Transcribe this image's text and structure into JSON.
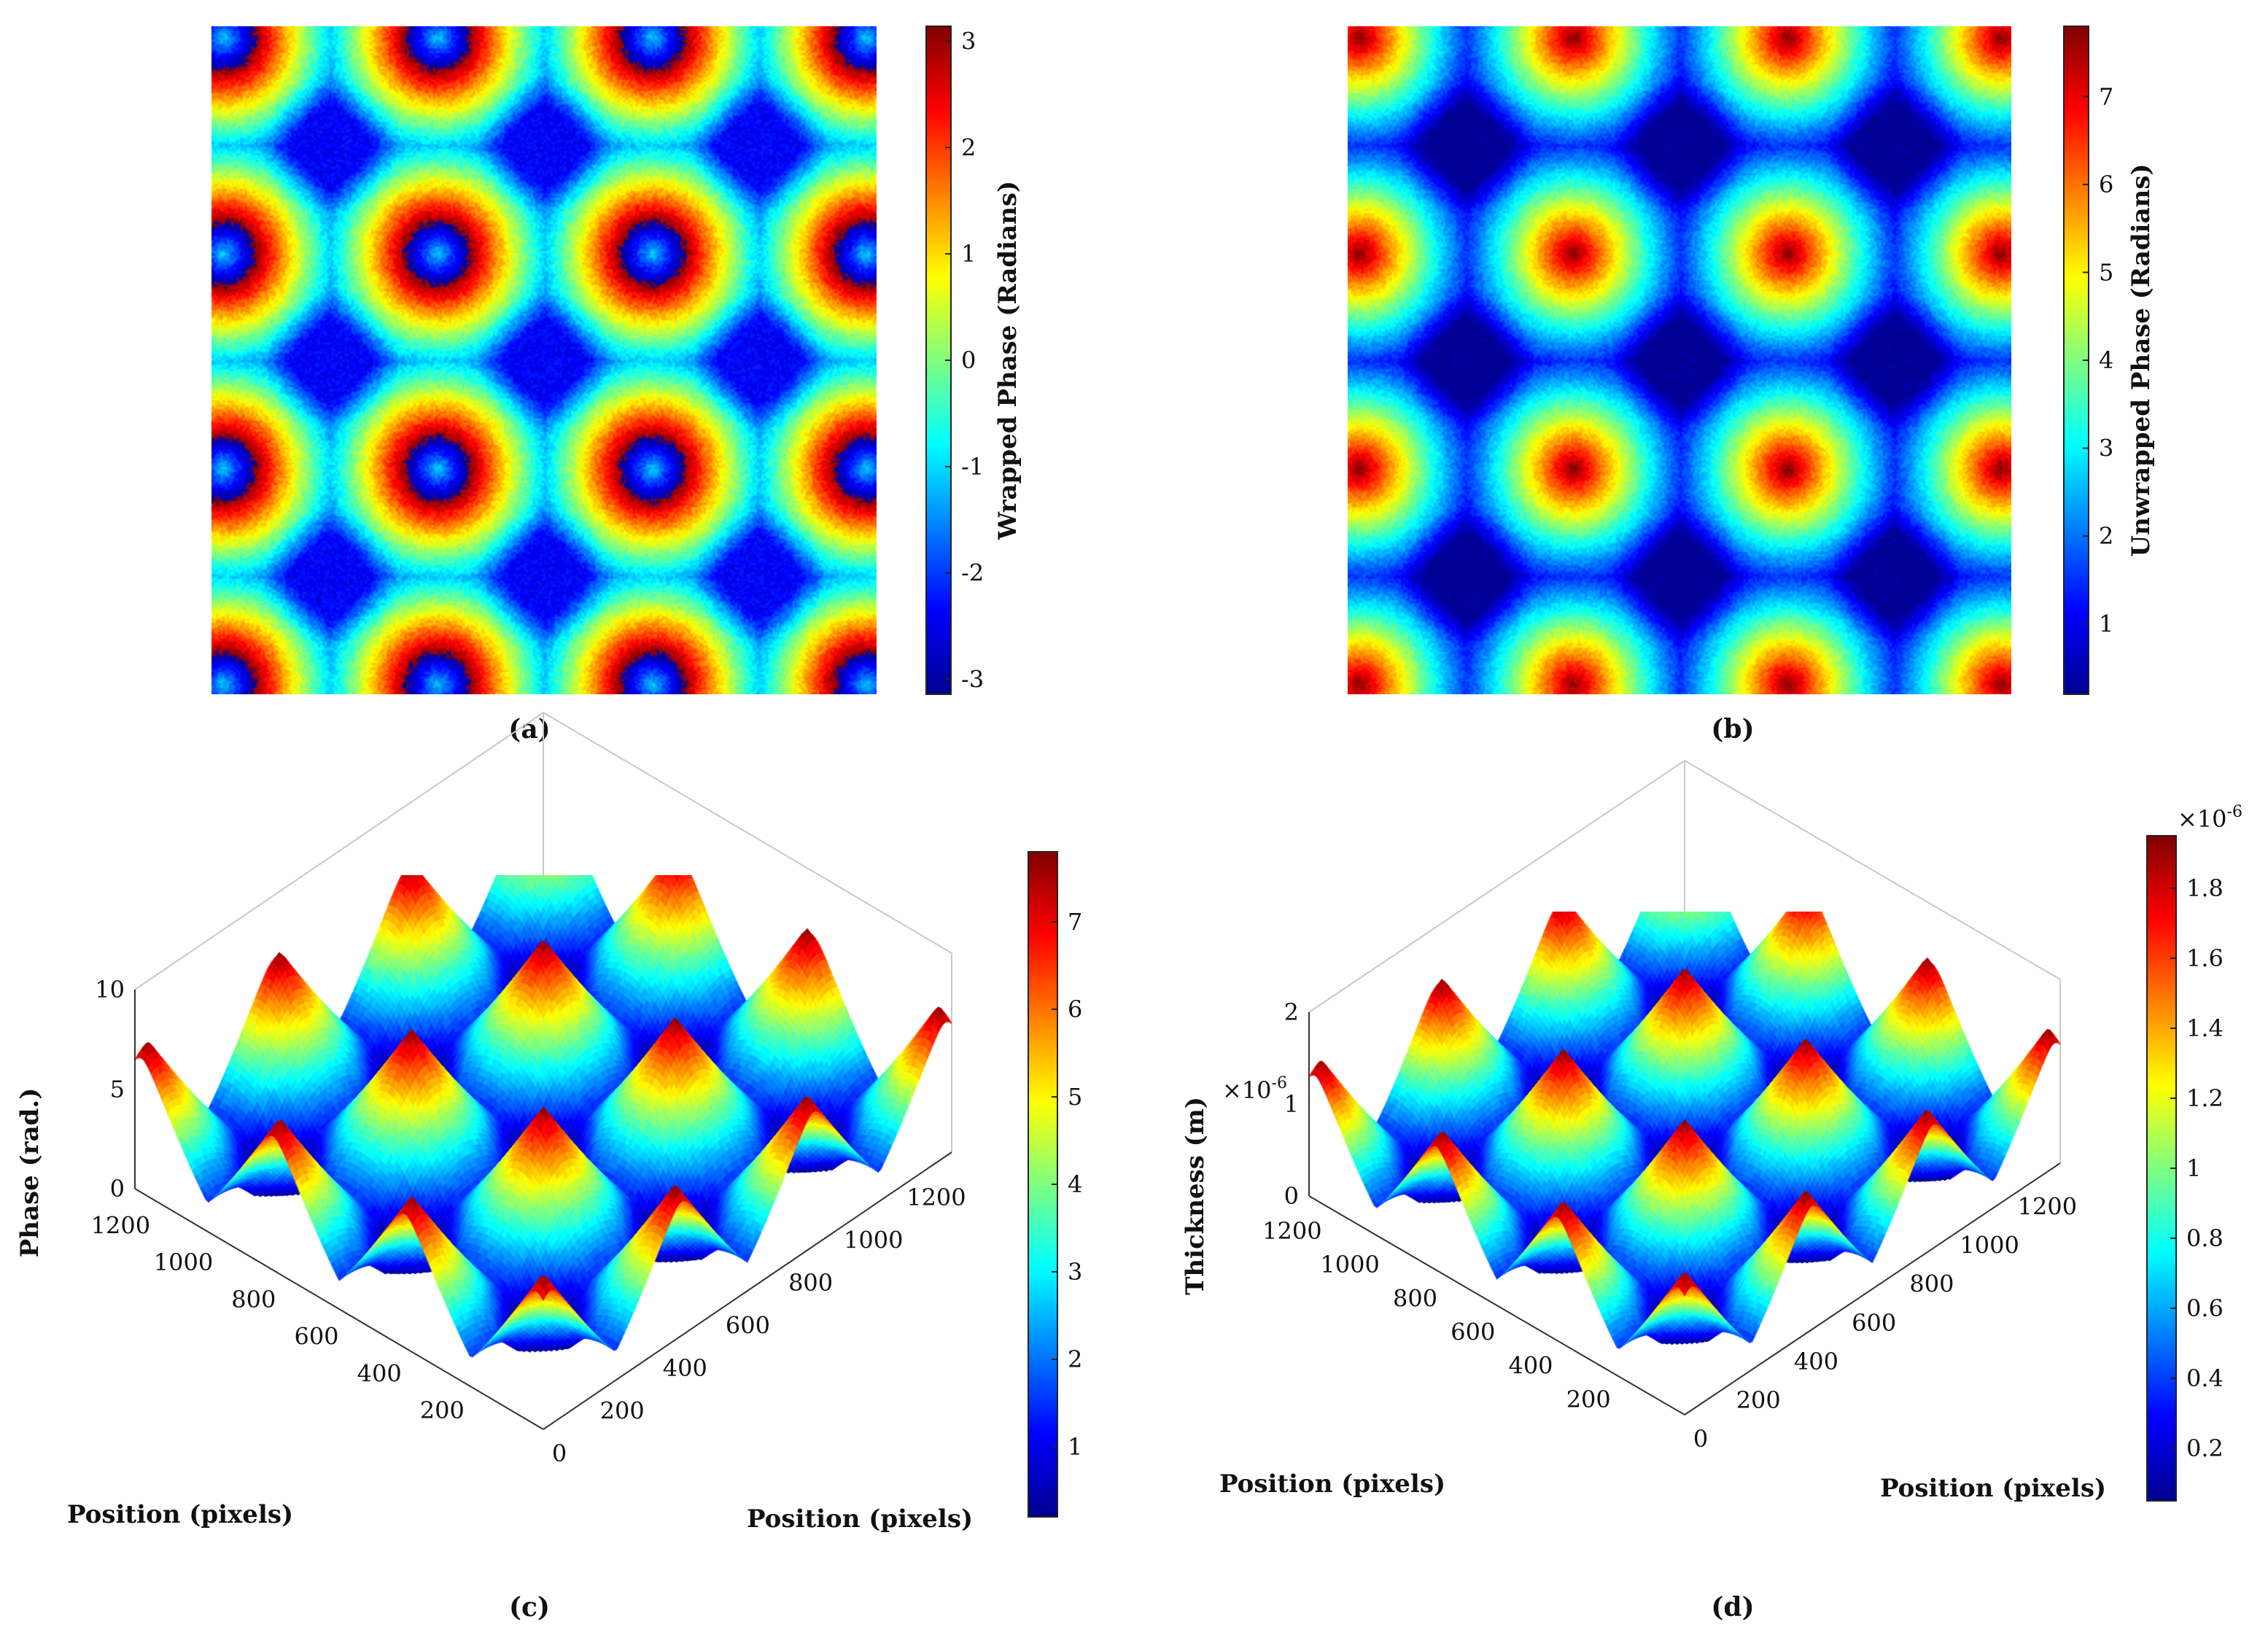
{
  "colormap": {
    "name": "jet",
    "stops": [
      "#00008f",
      "#0000ff",
      "#00ffff",
      "#ffff00",
      "#ff0000",
      "#800000"
    ]
  },
  "chart_data": [
    {
      "panel": "a",
      "type": "heatmap",
      "caption": "(a)",
      "title": "",
      "colorbar_label": "Wrapped Phase (Radians)",
      "colorbar_ticks": [
        3,
        2,
        1,
        0,
        -1,
        -2,
        -3
      ],
      "clim": [
        -3.14,
        3.14
      ],
      "pattern": "wrapped",
      "grid_cells": 3.1,
      "cell_offset": 0.45
    },
    {
      "panel": "b",
      "type": "heatmap",
      "caption": "(b)",
      "title": "",
      "colorbar_label": "Unwrapped Phase (Radians)",
      "colorbar_ticks": [
        7,
        6,
        5,
        4,
        3,
        2,
        1
      ],
      "clim": [
        0.2,
        7.8
      ],
      "pattern": "unwrapped",
      "grid_cells": 3.1,
      "cell_offset": 0.45
    },
    {
      "panel": "c",
      "type": "surface",
      "caption": "(c)",
      "zlabel": "Phase (rad.)",
      "xlabel": "Position (pixels)",
      "ylabel": "Position (pixels)",
      "z_ticks": [
        0,
        5,
        10
      ],
      "z_exponent": "",
      "x_ticks": [
        0,
        200,
        400,
        600,
        800,
        1000,
        1200
      ],
      "y_ticks": [
        200,
        400,
        600,
        800,
        1000,
        1200
      ],
      "colorbar_ticks": [
        7,
        6,
        5,
        4,
        3,
        2,
        1
      ],
      "colorbar_exponent": "",
      "clim": [
        0.2,
        7.8
      ]
    },
    {
      "panel": "d",
      "type": "surface",
      "caption": "(d)",
      "zlabel": "Thickness (m)",
      "xlabel": "Position (pixels)",
      "ylabel": "Position (pixels)",
      "z_ticks": [
        0,
        1,
        2
      ],
      "z_exponent": "×10-6",
      "x_ticks": [
        0,
        200,
        400,
        600,
        800,
        1000,
        1200
      ],
      "y_ticks": [
        200,
        400,
        600,
        800,
        1000,
        1200
      ],
      "colorbar_ticks": [
        1.8,
        1.6,
        1.4,
        1.2,
        1,
        0.8,
        0.6,
        0.4,
        0.2
      ],
      "colorbar_exponent": "×10-6",
      "clim": [
        0.05,
        1.95
      ]
    }
  ]
}
